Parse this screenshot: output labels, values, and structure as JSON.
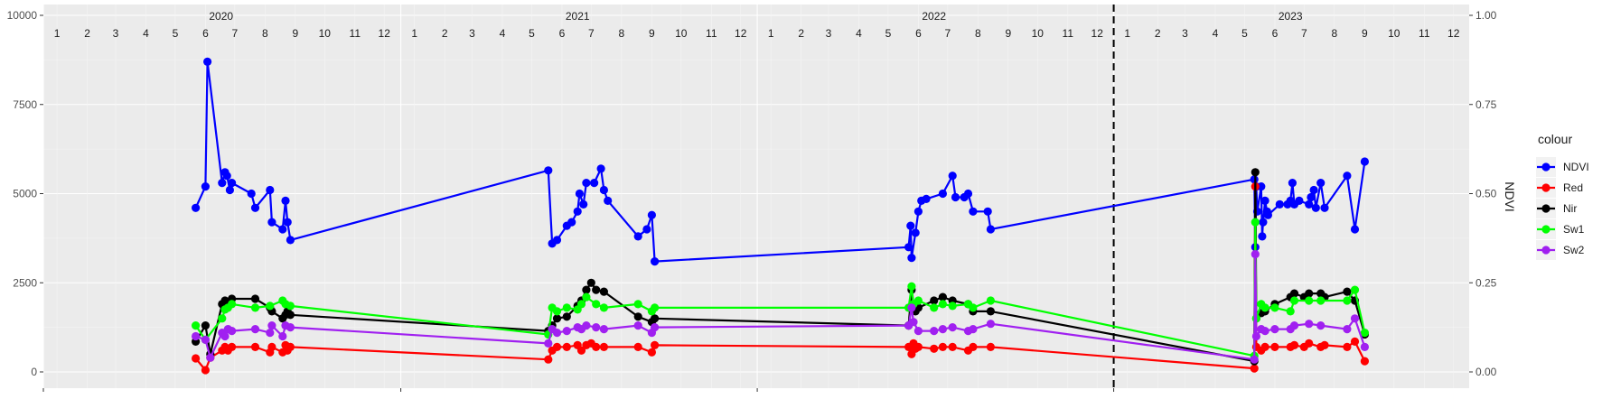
{
  "chart_data": {
    "type": "line",
    "ylabel": "",
    "y2label": "NDVI",
    "ylim": [
      0,
      10000
    ],
    "y2lim": [
      0,
      1
    ],
    "y_ticks": [
      "0",
      "2500",
      "5000",
      "7500",
      "10000"
    ],
    "y2_ticks": [
      "0.00",
      "0.25",
      "0.50",
      "0.75",
      "1.00"
    ],
    "years": [
      "2020",
      "2021",
      "2022",
      "2023"
    ],
    "months": [
      "1",
      "2",
      "3",
      "4",
      "5",
      "6",
      "7",
      "8",
      "9",
      "10",
      "11",
      "12"
    ],
    "xlim": [
      "2020-01-01",
      "2023-12-31"
    ],
    "vline": "2023-01-01",
    "grid": true,
    "legend": {
      "title": "colour",
      "position": "right"
    },
    "series": [
      {
        "name": "NDVI",
        "color": "#0000ff",
        "axis": "right",
        "values": [
          [
            "2020-06-05",
            0.46
          ],
          [
            "2020-06-15",
            0.52
          ],
          [
            "2020-06-17",
            0.87
          ],
          [
            "2020-07-02",
            0.53
          ],
          [
            "2020-07-05",
            0.56
          ],
          [
            "2020-07-07",
            0.55
          ],
          [
            "2020-07-10",
            0.51
          ],
          [
            "2020-07-12",
            0.53
          ],
          [
            "2020-08-01",
            0.5
          ],
          [
            "2020-08-05",
            0.46
          ],
          [
            "2020-08-20",
            0.51
          ],
          [
            "2020-08-22",
            0.42
          ],
          [
            "2020-09-02",
            0.4
          ],
          [
            "2020-09-05",
            0.48
          ],
          [
            "2020-09-07",
            0.42
          ],
          [
            "2020-09-10",
            0.37
          ],
          [
            "2021-06-01",
            0.565
          ],
          [
            "2021-06-05",
            0.36
          ],
          [
            "2021-06-10",
            0.37
          ],
          [
            "2021-06-20",
            0.41
          ],
          [
            "2021-06-25",
            0.42
          ],
          [
            "2021-07-01",
            0.45
          ],
          [
            "2021-07-03",
            0.5
          ],
          [
            "2021-07-07",
            0.47
          ],
          [
            "2021-07-10",
            0.53
          ],
          [
            "2021-07-18",
            0.53
          ],
          [
            "2021-07-25",
            0.57
          ],
          [
            "2021-07-28",
            0.51
          ],
          [
            "2021-08-01",
            0.48
          ],
          [
            "2021-09-01",
            0.38
          ],
          [
            "2021-09-10",
            0.4
          ],
          [
            "2021-09-15",
            0.44
          ],
          [
            "2021-09-18",
            0.31
          ],
          [
            "2022-06-05",
            0.35
          ],
          [
            "2022-06-07",
            0.41
          ],
          [
            "2022-06-08",
            0.32
          ],
          [
            "2022-06-12",
            0.39
          ],
          [
            "2022-06-15",
            0.45
          ],
          [
            "2022-06-18",
            0.48
          ],
          [
            "2022-06-23",
            0.485
          ],
          [
            "2022-07-10",
            0.5
          ],
          [
            "2022-07-20",
            0.55
          ],
          [
            "2022-07-23",
            0.49
          ],
          [
            "2022-08-01",
            0.49
          ],
          [
            "2022-08-05",
            0.5
          ],
          [
            "2022-08-10",
            0.45
          ],
          [
            "2022-08-25",
            0.45
          ],
          [
            "2022-08-28",
            0.4
          ],
          [
            "2023-05-25",
            0.54
          ],
          [
            "2023-05-26",
            0.35
          ],
          [
            "2023-05-27",
            0.52
          ],
          [
            "2023-05-28",
            0.45
          ],
          [
            "2023-06-01",
            0.52
          ],
          [
            "2023-06-02",
            0.38
          ],
          [
            "2023-06-03",
            0.42
          ],
          [
            "2023-06-05",
            0.48
          ],
          [
            "2023-06-07",
            0.45
          ],
          [
            "2023-06-08",
            0.44
          ],
          [
            "2023-06-20",
            0.47
          ],
          [
            "2023-06-28",
            0.47
          ],
          [
            "2023-07-01",
            0.48
          ],
          [
            "2023-07-03",
            0.53
          ],
          [
            "2023-07-05",
            0.47
          ],
          [
            "2023-07-10",
            0.48
          ],
          [
            "2023-07-20",
            0.47
          ],
          [
            "2023-07-22",
            0.49
          ],
          [
            "2023-07-25",
            0.51
          ],
          [
            "2023-07-27",
            0.46
          ],
          [
            "2023-08-01",
            0.53
          ],
          [
            "2023-08-05",
            0.46
          ],
          [
            "2023-08-28",
            0.55
          ],
          [
            "2023-09-05",
            0.4
          ],
          [
            "2023-09-15",
            0.59
          ]
        ]
      },
      {
        "name": "Red",
        "color": "#ff0000",
        "axis": "left",
        "values": [
          [
            "2020-06-05",
            380
          ],
          [
            "2020-06-15",
            50
          ],
          [
            "2020-06-20",
            400
          ],
          [
            "2020-07-02",
            600
          ],
          [
            "2020-07-05",
            700
          ],
          [
            "2020-07-08",
            600
          ],
          [
            "2020-07-12",
            700
          ],
          [
            "2020-08-05",
            700
          ],
          [
            "2020-08-20",
            550
          ],
          [
            "2020-08-22",
            700
          ],
          [
            "2020-09-02",
            550
          ],
          [
            "2020-09-05",
            750
          ],
          [
            "2020-09-07",
            600
          ],
          [
            "2020-09-10",
            700
          ],
          [
            "2021-06-01",
            350
          ],
          [
            "2021-06-05",
            600
          ],
          [
            "2021-06-10",
            700
          ],
          [
            "2021-06-20",
            700
          ],
          [
            "2021-07-01",
            750
          ],
          [
            "2021-07-05",
            600
          ],
          [
            "2021-07-10",
            750
          ],
          [
            "2021-07-15",
            800
          ],
          [
            "2021-07-20",
            700
          ],
          [
            "2021-07-28",
            700
          ],
          [
            "2021-09-01",
            700
          ],
          [
            "2021-09-15",
            550
          ],
          [
            "2021-09-18",
            750
          ],
          [
            "2022-06-05",
            700
          ],
          [
            "2022-06-08",
            500
          ],
          [
            "2022-06-10",
            800
          ],
          [
            "2022-06-12",
            650
          ],
          [
            "2022-06-15",
            700
          ],
          [
            "2022-07-01",
            650
          ],
          [
            "2022-07-10",
            700
          ],
          [
            "2022-07-20",
            700
          ],
          [
            "2022-08-05",
            600
          ],
          [
            "2022-08-10",
            700
          ],
          [
            "2022-08-28",
            700
          ],
          [
            "2023-05-25",
            100
          ],
          [
            "2023-05-26",
            5200
          ],
          [
            "2023-05-27",
            700
          ],
          [
            "2023-06-01",
            600
          ],
          [
            "2023-06-05",
            700
          ],
          [
            "2023-06-15",
            700
          ],
          [
            "2023-07-01",
            700
          ],
          [
            "2023-07-05",
            750
          ],
          [
            "2023-07-15",
            700
          ],
          [
            "2023-07-20",
            800
          ],
          [
            "2023-08-01",
            700
          ],
          [
            "2023-08-05",
            750
          ],
          [
            "2023-08-28",
            700
          ],
          [
            "2023-09-05",
            850
          ],
          [
            "2023-09-15",
            300
          ]
        ]
      },
      {
        "name": "Nir",
        "color": "#000000",
        "axis": "left",
        "values": [
          [
            "2020-06-05",
            850
          ],
          [
            "2020-06-15",
            1300
          ],
          [
            "2020-06-20",
            500
          ],
          [
            "2020-07-02",
            1900
          ],
          [
            "2020-07-05",
            2000
          ],
          [
            "2020-07-08",
            1950
          ],
          [
            "2020-07-12",
            2050
          ],
          [
            "2020-08-05",
            2050
          ],
          [
            "2020-08-20",
            1800
          ],
          [
            "2020-08-22",
            1700
          ],
          [
            "2020-09-02",
            1500
          ],
          [
            "2020-09-05",
            1600
          ],
          [
            "2020-09-07",
            1700
          ],
          [
            "2020-09-10",
            1600
          ],
          [
            "2021-06-01",
            1150
          ],
          [
            "2021-06-05",
            1300
          ],
          [
            "2021-06-10",
            1500
          ],
          [
            "2021-06-20",
            1550
          ],
          [
            "2021-07-01",
            1850
          ],
          [
            "2021-07-05",
            2000
          ],
          [
            "2021-07-10",
            2300
          ],
          [
            "2021-07-15",
            2500
          ],
          [
            "2021-07-20",
            2300
          ],
          [
            "2021-07-28",
            2250
          ],
          [
            "2021-09-01",
            1550
          ],
          [
            "2021-09-15",
            1400
          ],
          [
            "2021-09-18",
            1500
          ],
          [
            "2022-06-05",
            1300
          ],
          [
            "2022-06-08",
            2300
          ],
          [
            "2022-06-10",
            1900
          ],
          [
            "2022-06-12",
            1700
          ],
          [
            "2022-06-15",
            1800
          ],
          [
            "2022-07-01",
            2000
          ],
          [
            "2022-07-10",
            2100
          ],
          [
            "2022-07-20",
            2000
          ],
          [
            "2022-08-05",
            1900
          ],
          [
            "2022-08-10",
            1700
          ],
          [
            "2022-08-28",
            1700
          ],
          [
            "2023-05-25",
            300
          ],
          [
            "2023-05-26",
            5600
          ],
          [
            "2023-05-27",
            1500
          ],
          [
            "2023-06-01",
            1650
          ],
          [
            "2023-06-05",
            1700
          ],
          [
            "2023-06-15",
            1900
          ],
          [
            "2023-07-01",
            2100
          ],
          [
            "2023-07-05",
            2200
          ],
          [
            "2023-07-15",
            2100
          ],
          [
            "2023-07-20",
            2200
          ],
          [
            "2023-08-01",
            2200
          ],
          [
            "2023-08-05",
            2100
          ],
          [
            "2023-08-28",
            2250
          ],
          [
            "2023-09-05",
            2000
          ],
          [
            "2023-09-15",
            1050
          ]
        ]
      },
      {
        "name": "Sw1",
        "color": "#00ff00",
        "axis": "left",
        "values": [
          [
            "2020-06-05",
            1300
          ],
          [
            "2020-06-15",
            900
          ],
          [
            "2020-07-02",
            1500
          ],
          [
            "2020-07-05",
            1750
          ],
          [
            "2020-07-08",
            1800
          ],
          [
            "2020-07-12",
            1900
          ],
          [
            "2020-08-05",
            1800
          ],
          [
            "2020-08-20",
            1850
          ],
          [
            "2020-09-02",
            2000
          ],
          [
            "2020-09-05",
            1900
          ],
          [
            "2020-09-10",
            1850
          ],
          [
            "2021-06-01",
            1050
          ],
          [
            "2021-06-05",
            1800
          ],
          [
            "2021-06-10",
            1700
          ],
          [
            "2021-06-20",
            1800
          ],
          [
            "2021-07-01",
            1750
          ],
          [
            "2021-07-05",
            1900
          ],
          [
            "2021-07-10",
            2100
          ],
          [
            "2021-07-20",
            1900
          ],
          [
            "2021-07-28",
            1800
          ],
          [
            "2021-09-01",
            1900
          ],
          [
            "2021-09-15",
            1700
          ],
          [
            "2021-09-18",
            1800
          ],
          [
            "2022-06-05",
            1800
          ],
          [
            "2022-06-08",
            2400
          ],
          [
            "2022-06-10",
            1900
          ],
          [
            "2022-06-15",
            2000
          ],
          [
            "2022-07-01",
            1800
          ],
          [
            "2022-07-10",
            1900
          ],
          [
            "2022-07-20",
            1850
          ],
          [
            "2022-08-05",
            1900
          ],
          [
            "2022-08-10",
            1800
          ],
          [
            "2022-08-28",
            2000
          ],
          [
            "2023-05-25",
            450
          ],
          [
            "2023-05-26",
            4200
          ],
          [
            "2023-05-27",
            1500
          ],
          [
            "2023-06-01",
            1900
          ],
          [
            "2023-06-05",
            1800
          ],
          [
            "2023-06-15",
            1800
          ],
          [
            "2023-07-01",
            1700
          ],
          [
            "2023-07-05",
            2000
          ],
          [
            "2023-07-20",
            2000
          ],
          [
            "2023-08-01",
            2000
          ],
          [
            "2023-08-28",
            2000
          ],
          [
            "2023-09-05",
            2300
          ],
          [
            "2023-09-15",
            1100
          ]
        ]
      },
      {
        "name": "Sw2",
        "color": "#a020f0",
        "axis": "left",
        "values": [
          [
            "2020-06-05",
            1000
          ],
          [
            "2020-06-15",
            900
          ],
          [
            "2020-06-20",
            400
          ],
          [
            "2020-07-02",
            1100
          ],
          [
            "2020-07-05",
            1000
          ],
          [
            "2020-07-08",
            1200
          ],
          [
            "2020-07-12",
            1150
          ],
          [
            "2020-08-05",
            1200
          ],
          [
            "2020-08-20",
            1100
          ],
          [
            "2020-08-22",
            1300
          ],
          [
            "2020-09-02",
            1000
          ],
          [
            "2020-09-05",
            1300
          ],
          [
            "2020-09-10",
            1250
          ],
          [
            "2021-06-01",
            800
          ],
          [
            "2021-06-05",
            1200
          ],
          [
            "2021-06-10",
            1100
          ],
          [
            "2021-06-20",
            1150
          ],
          [
            "2021-07-01",
            1250
          ],
          [
            "2021-07-05",
            1200
          ],
          [
            "2021-07-10",
            1300
          ],
          [
            "2021-07-20",
            1250
          ],
          [
            "2021-07-28",
            1200
          ],
          [
            "2021-09-01",
            1300
          ],
          [
            "2021-09-15",
            1100
          ],
          [
            "2021-09-18",
            1250
          ],
          [
            "2022-06-05",
            1300
          ],
          [
            "2022-06-08",
            1800
          ],
          [
            "2022-06-10",
            1400
          ],
          [
            "2022-06-15",
            1150
          ],
          [
            "2022-07-01",
            1150
          ],
          [
            "2022-07-10",
            1200
          ],
          [
            "2022-07-20",
            1250
          ],
          [
            "2022-08-05",
            1150
          ],
          [
            "2022-08-10",
            1200
          ],
          [
            "2022-08-28",
            1350
          ],
          [
            "2023-05-25",
            350
          ],
          [
            "2023-05-26",
            3300
          ],
          [
            "2023-05-27",
            1000
          ],
          [
            "2023-06-01",
            1200
          ],
          [
            "2023-06-05",
            1150
          ],
          [
            "2023-06-15",
            1200
          ],
          [
            "2023-07-01",
            1200
          ],
          [
            "2023-07-05",
            1300
          ],
          [
            "2023-07-20",
            1350
          ],
          [
            "2023-08-01",
            1300
          ],
          [
            "2023-08-28",
            1200
          ],
          [
            "2023-09-05",
            1500
          ],
          [
            "2023-09-15",
            700
          ]
        ]
      }
    ]
  }
}
